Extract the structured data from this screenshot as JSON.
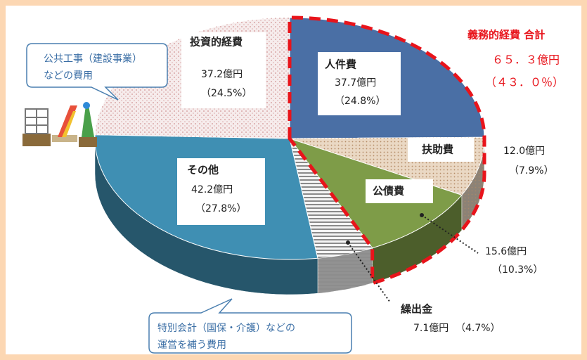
{
  "chart_data": {
    "type": "pie",
    "categories": [
      "人件費",
      "扶助費",
      "公債費",
      "繰出金",
      "その他",
      "投資的経費"
    ],
    "values": [
      37.7,
      12.0,
      15.6,
      7.1,
      42.2,
      37.2
    ],
    "value_labels": [
      "37.7億円",
      "12.0億円",
      "15.6億円",
      "7.1億円",
      "42.2億円",
      "37.2億円"
    ],
    "percents": [
      24.8,
      7.9,
      10.3,
      4.7,
      27.8,
      24.5
    ],
    "percent_labels": [
      "（24.8%）",
      "（7.9%）",
      "（10.3%）",
      "（4.7%）",
      "（27.8%）",
      "（24.5%）"
    ],
    "colors": [
      "#4a6fa5",
      "#ead8c4",
      "#7e9c48",
      "#f4f4f4",
      "#3f8fb3",
      "#f6ecec"
    ],
    "group": {
      "title": "義務的経費 合計",
      "value": 65.3,
      "value_label": "６５．３億円",
      "percent": 43.0,
      "percent_label": "（４３．０％）",
      "color": "#e8141b"
    },
    "annotations": [
      {
        "lines": [
          "公共工事（建設事業）",
          "などの費用"
        ]
      },
      {
        "lines": [
          "特別会計（国保・介護）などの",
          "運営を補う費用"
        ]
      }
    ]
  }
}
